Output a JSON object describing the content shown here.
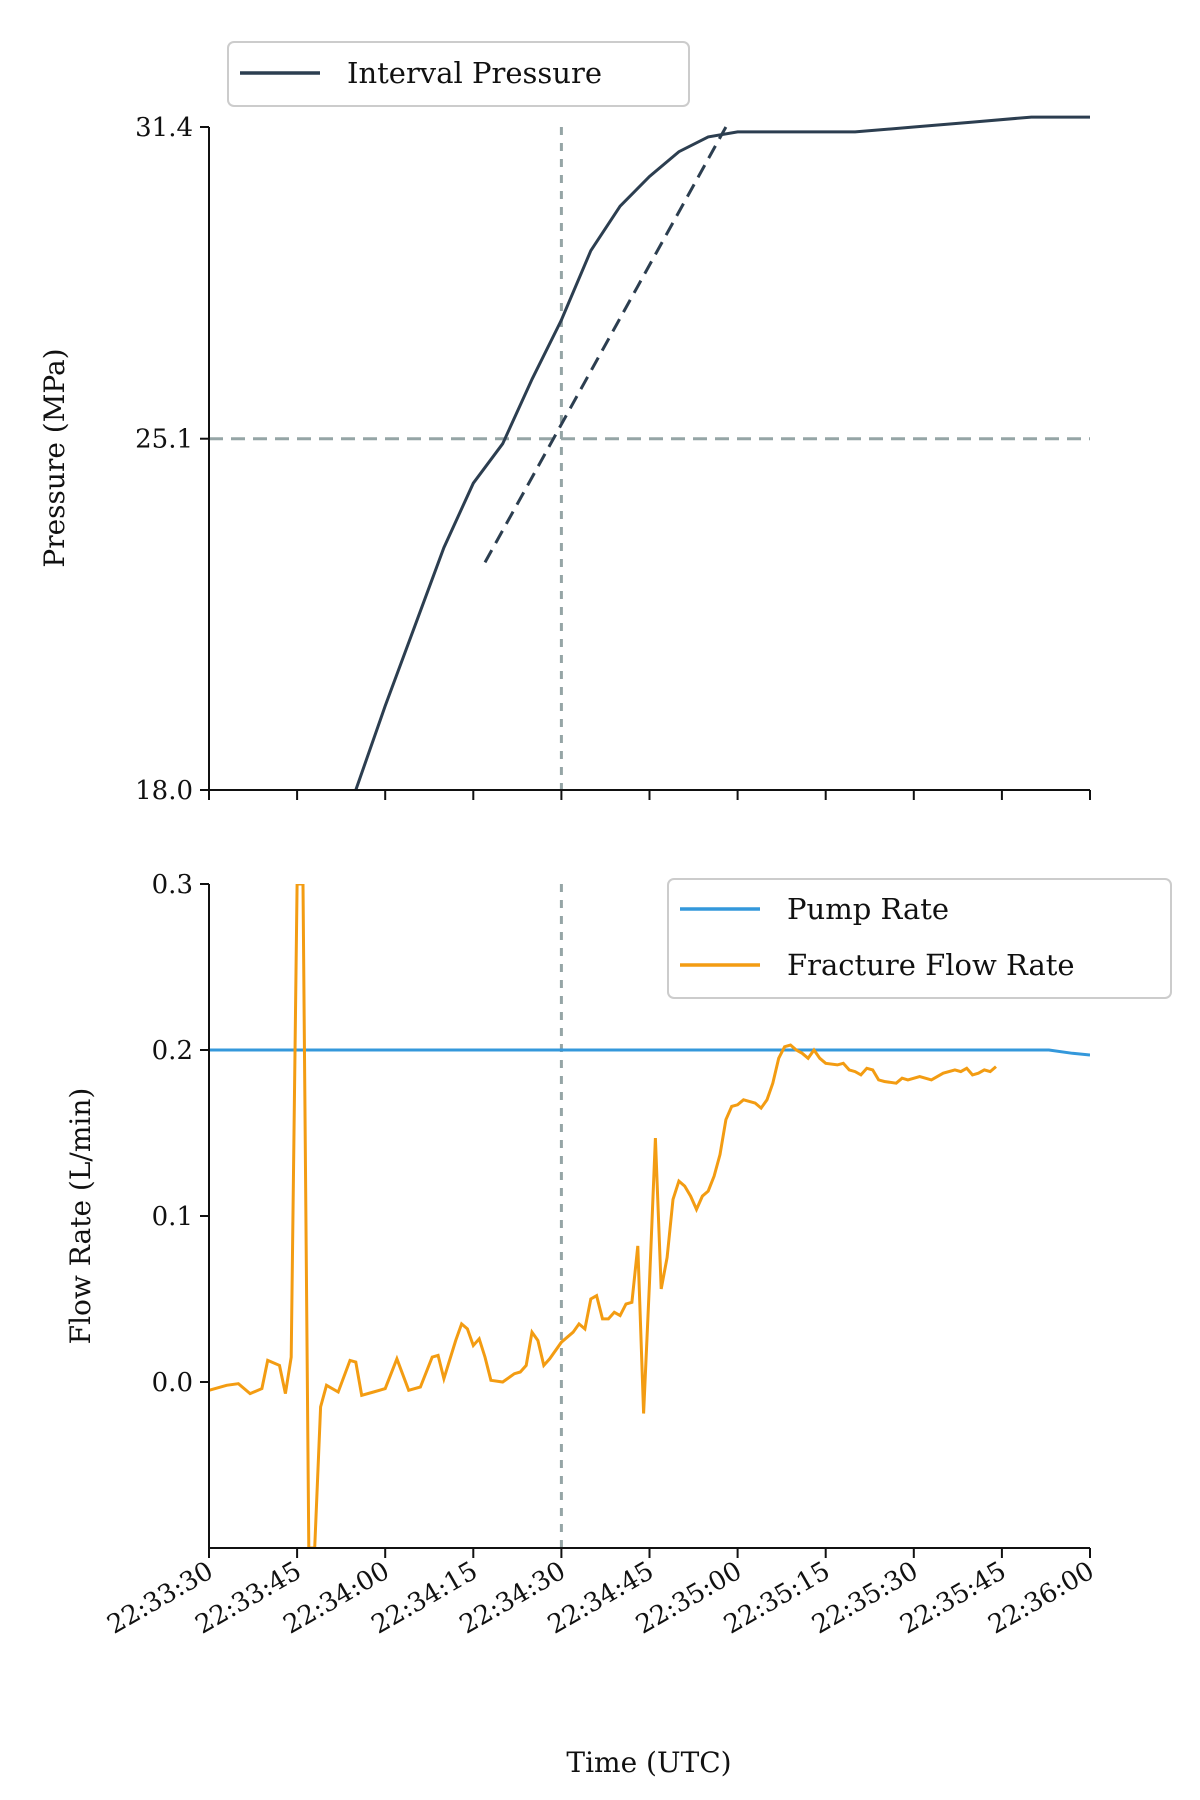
{
  "colors": {
    "pressure": "#2c3e50",
    "reference": "#95a5a6",
    "pump": "#3498db",
    "fracture": "#f39c12"
  },
  "chart_data": [
    {
      "type": "line",
      "id": "pressure-panel",
      "title": "",
      "xlabel": "",
      "ylabel": "Pressure (MPa)",
      "ylim": [
        18.0,
        31.4
      ],
      "yticks": [
        "31.4",
        "25.1",
        "18.0"
      ],
      "ytick_values": [
        31.4,
        25.1,
        18.0
      ],
      "xlim": [
        "22:33:30",
        "22:36:00"
      ],
      "grid": false,
      "legend": {
        "placement": "top-left, above axes",
        "entries": [
          "Interval Pressure"
        ]
      },
      "series": [
        {
          "name": "Interval Pressure",
          "style": "solid",
          "points": [
            [
              "22:33:55",
              18.0
            ],
            [
              "22:34:00",
              19.7
            ],
            [
              "22:34:05",
              21.3
            ],
            [
              "22:34:10",
              22.9
            ],
            [
              "22:34:15",
              24.2
            ],
            [
              "22:34:20",
              25.0
            ],
            [
              "22:34:25",
              26.3
            ],
            [
              "22:34:30",
              27.5
            ],
            [
              "22:34:35",
              28.9
            ],
            [
              "22:34:40",
              29.8
            ],
            [
              "22:34:45",
              30.4
            ],
            [
              "22:34:50",
              30.9
            ],
            [
              "22:34:55",
              31.2
            ],
            [
              "22:35:00",
              31.3
            ],
            [
              "22:35:10",
              31.3
            ],
            [
              "22:35:20",
              31.3
            ],
            [
              "22:35:30",
              31.4
            ],
            [
              "22:35:40",
              31.5
            ],
            [
              "22:35:50",
              31.6
            ],
            [
              "22:36:00",
              31.6
            ]
          ]
        },
        {
          "name": "",
          "style": "dashed",
          "points": [
            [
              "22:34:17",
              22.6
            ],
            [
              "22:34:58",
              31.4
            ]
          ]
        }
      ],
      "reference_lines": {
        "horizontal": 25.1,
        "vertical": "22:34:30"
      }
    },
    {
      "type": "line",
      "id": "flow-panel",
      "title": "",
      "xlabel": "Time (UTC)",
      "ylabel": "Flow Rate (L/min)",
      "ylim": [
        -0.1,
        0.3
      ],
      "yticks": [
        "0.3",
        "0.2",
        "0.1",
        "0.0"
      ],
      "ytick_values": [
        0.3,
        0.2,
        0.1,
        0.0
      ],
      "xlim": [
        "22:33:30",
        "22:36:00"
      ],
      "xticks": [
        "22:33:30",
        "22:33:45",
        "22:34:00",
        "22:34:15",
        "22:34:30",
        "22:34:45",
        "22:35:00",
        "22:35:15",
        "22:35:30",
        "22:35:45",
        "22:36:00"
      ],
      "grid": false,
      "legend": {
        "placement": "top-right",
        "entries": [
          "Pump Rate",
          "Fracture Flow Rate"
        ]
      },
      "reference_lines": {
        "vertical": "22:34:30"
      },
      "series": [
        {
          "name": "Pump Rate",
          "points": [
            [
              "22:33:30",
              0.2
            ],
            [
              "22:35:45",
              0.2
            ],
            [
              "22:35:53",
              0.2
            ],
            [
              "22:35:57",
              0.198
            ],
            [
              "22:36:00",
              0.197
            ]
          ]
        },
        {
          "name": "Fracture Flow Rate",
          "points": [
            [
              "22:33:30",
              -0.005
            ],
            [
              "22:33:33",
              -0.002
            ],
            [
              "22:33:35",
              -0.001
            ],
            [
              "22:33:37",
              -0.007
            ],
            [
              "22:33:39",
              -0.004
            ],
            [
              "22:33:40",
              0.013
            ],
            [
              "22:33:42",
              0.01
            ],
            [
              "22:33:43",
              -0.007
            ],
            [
              "22:33:44",
              0.015
            ],
            [
              "22:33:45",
              0.3
            ],
            [
              "22:33:46",
              0.3
            ],
            [
              "22:33:47",
              -0.1
            ],
            [
              "22:33:48",
              -0.1
            ],
            [
              "22:33:49",
              -0.015
            ],
            [
              "22:33:50",
              -0.002
            ],
            [
              "22:33:52",
              -0.006
            ],
            [
              "22:33:54",
              0.013
            ],
            [
              "22:33:55",
              0.012
            ],
            [
              "22:33:56",
              -0.008
            ],
            [
              "22:33:58",
              -0.006
            ],
            [
              "22:34:00",
              -0.004
            ],
            [
              "22:34:02",
              0.014
            ],
            [
              "22:34:04",
              -0.005
            ],
            [
              "22:34:06",
              -0.003
            ],
            [
              "22:34:08",
              0.015
            ],
            [
              "22:34:09",
              0.016
            ],
            [
              "22:34:10",
              0.002
            ],
            [
              "22:34:12",
              0.025
            ],
            [
              "22:34:13",
              0.035
            ],
            [
              "22:34:14",
              0.032
            ],
            [
              "22:34:15",
              0.022
            ],
            [
              "22:34:16",
              0.026
            ],
            [
              "22:34:17",
              0.015
            ],
            [
              "22:34:18",
              0.001
            ],
            [
              "22:34:20",
              0.0
            ],
            [
              "22:34:22",
              0.005
            ],
            [
              "22:34:23",
              0.006
            ],
            [
              "22:34:24",
              0.01
            ],
            [
              "22:34:25",
              0.03
            ],
            [
              "22:34:26",
              0.025
            ],
            [
              "22:34:27",
              0.01
            ],
            [
              "22:34:28",
              0.014
            ],
            [
              "22:34:30",
              0.024
            ],
            [
              "22:34:32",
              0.03
            ],
            [
              "22:34:33",
              0.035
            ],
            [
              "22:34:34",
              0.032
            ],
            [
              "22:34:35",
              0.05
            ],
            [
              "22:34:36",
              0.052
            ],
            [
              "22:34:37",
              0.038
            ],
            [
              "22:34:38",
              0.038
            ],
            [
              "22:34:39",
              0.042
            ],
            [
              "22:34:40",
              0.04
            ],
            [
              "22:34:41",
              0.047
            ],
            [
              "22:34:42",
              0.048
            ],
            [
              "22:34:43",
              0.082
            ],
            [
              "22:34:44",
              -0.019
            ],
            [
              "22:34:45",
              0.06
            ],
            [
              "22:34:46",
              0.147
            ],
            [
              "22:34:47",
              0.056
            ],
            [
              "22:34:48",
              0.075
            ],
            [
              "22:34:49",
              0.11
            ],
            [
              "22:34:50",
              0.121
            ],
            [
              "22:34:51",
              0.118
            ],
            [
              "22:34:52",
              0.112
            ],
            [
              "22:34:53",
              0.104
            ],
            [
              "22:34:54",
              0.112
            ],
            [
              "22:34:55",
              0.115
            ],
            [
              "22:34:56",
              0.124
            ],
            [
              "22:34:57",
              0.137
            ],
            [
              "22:34:58",
              0.158
            ],
            [
              "22:34:59",
              0.166
            ],
            [
              "22:35:00",
              0.167
            ],
            [
              "22:35:01",
              0.17
            ],
            [
              "22:35:03",
              0.168
            ],
            [
              "22:35:04",
              0.165
            ],
            [
              "22:35:05",
              0.17
            ],
            [
              "22:35:06",
              0.18
            ],
            [
              "22:35:07",
              0.195
            ],
            [
              "22:35:08",
              0.202
            ],
            [
              "22:35:09",
              0.203
            ],
            [
              "22:35:10",
              0.2
            ],
            [
              "22:35:11",
              0.198
            ],
            [
              "22:35:12",
              0.195
            ],
            [
              "22:35:13",
              0.2
            ],
            [
              "22:35:14",
              0.195
            ],
            [
              "22:35:15",
              0.192
            ],
            [
              "22:35:17",
              0.191
            ],
            [
              "22:35:18",
              0.192
            ],
            [
              "22:35:19",
              0.188
            ],
            [
              "22:35:20",
              0.187
            ],
            [
              "22:35:21",
              0.185
            ],
            [
              "22:35:22",
              0.189
            ],
            [
              "22:35:23",
              0.188
            ],
            [
              "22:35:24",
              0.182
            ],
            [
              "22:35:25",
              0.181
            ],
            [
              "22:35:27",
              0.18
            ],
            [
              "22:35:28",
              0.183
            ],
            [
              "22:35:29",
              0.182
            ],
            [
              "22:35:31",
              0.184
            ],
            [
              "22:35:33",
              0.182
            ],
            [
              "22:35:35",
              0.186
            ],
            [
              "22:35:37",
              0.188
            ],
            [
              "22:35:38",
              0.187
            ],
            [
              "22:35:39",
              0.189
            ],
            [
              "22:35:40",
              0.185
            ],
            [
              "22:35:41",
              0.186
            ],
            [
              "22:35:42",
              0.188
            ],
            [
              "22:35:43",
              0.187
            ],
            [
              "22:35:44",
              0.19
            ]
          ]
        }
      ]
    }
  ]
}
